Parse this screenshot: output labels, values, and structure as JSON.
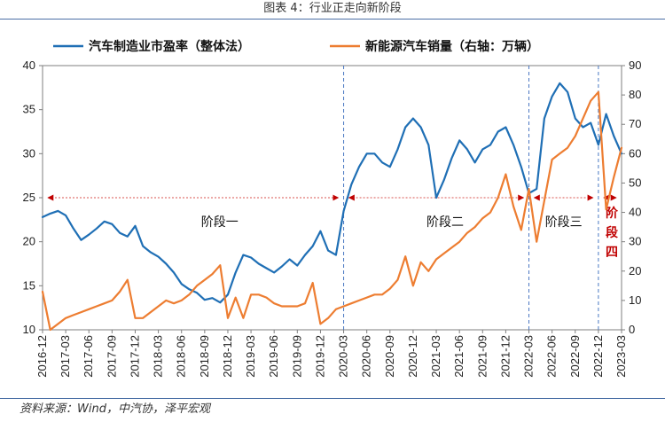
{
  "figure": {
    "title": "图表 4：行业正走向新阶段",
    "source": "资料来源：Wind，中汽协，泽平宏观"
  },
  "chart_data": {
    "type": "line",
    "x": [
      "2016-12",
      "2017-01",
      "2017-02",
      "2017-03",
      "2017-04",
      "2017-05",
      "2017-06",
      "2017-07",
      "2017-08",
      "2017-09",
      "2017-10",
      "2017-11",
      "2017-12",
      "2018-01",
      "2018-02",
      "2018-03",
      "2018-04",
      "2018-05",
      "2018-06",
      "2018-07",
      "2018-08",
      "2018-09",
      "2018-10",
      "2018-11",
      "2018-12",
      "2019-01",
      "2019-02",
      "2019-03",
      "2019-04",
      "2019-05",
      "2019-06",
      "2019-07",
      "2019-08",
      "2019-09",
      "2019-10",
      "2019-11",
      "2019-12",
      "2020-01",
      "2020-02",
      "2020-03",
      "2020-04",
      "2020-05",
      "2020-06",
      "2020-07",
      "2020-08",
      "2020-09",
      "2020-10",
      "2020-11",
      "2020-12",
      "2021-01",
      "2021-02",
      "2021-03",
      "2021-04",
      "2021-05",
      "2021-06",
      "2021-07",
      "2021-08",
      "2021-09",
      "2021-10",
      "2021-11",
      "2021-12",
      "2022-01",
      "2022-02",
      "2022-03",
      "2022-04",
      "2022-05",
      "2022-06",
      "2022-07",
      "2022-08",
      "2022-09",
      "2022-10",
      "2022-11",
      "2022-12",
      "2023-01",
      "2023-02",
      "2023-03"
    ],
    "x_ticks": [
      "2016-12",
      "2017-03",
      "2017-06",
      "2017-09",
      "2017-12",
      "2018-03",
      "2018-06",
      "2018-09",
      "2018-12",
      "2019-03",
      "2019-06",
      "2019-09",
      "2019-12",
      "2020-03",
      "2020-06",
      "2020-09",
      "2020-12",
      "2021-03",
      "2021-06",
      "2021-09",
      "2021-12",
      "2022-03",
      "2022-06",
      "2022-09",
      "2022-12",
      "2023-03"
    ],
    "series": [
      {
        "name": "汽车制造业市盈率（整体法）",
        "axis": "left",
        "color": "#1f6fb5",
        "values": [
          22.8,
          23.2,
          23.5,
          23.0,
          21.5,
          20.2,
          20.8,
          21.5,
          22.3,
          22.0,
          21.0,
          20.6,
          21.8,
          19.5,
          18.8,
          18.3,
          17.5,
          16.5,
          15.2,
          14.6,
          14.2,
          13.4,
          13.6,
          13.1,
          14.0,
          16.5,
          18.5,
          18.2,
          17.5,
          17.0,
          16.5,
          17.2,
          18.0,
          17.3,
          18.5,
          19.5,
          21.2,
          19.0,
          18.5,
          23.5,
          26.5,
          28.5,
          30.0,
          30.0,
          29.0,
          28.5,
          30.5,
          33.0,
          34.0,
          33.0,
          31.0,
          25.0,
          27.0,
          29.5,
          31.5,
          30.5,
          29.0,
          30.5,
          31.0,
          32.5,
          33.0,
          31.0,
          28.5,
          25.5,
          26.0,
          34.0,
          36.5,
          38.0,
          37.0,
          34.0,
          33.0,
          33.5,
          31.0,
          34.5,
          32.0,
          30.0
        ]
      },
      {
        "name": "新能源汽车销量（右轴：万辆）",
        "axis": "right",
        "color": "#ed7d31",
        "values": [
          13,
          0,
          2,
          4,
          5,
          6,
          7,
          8,
          9,
          10,
          13,
          17,
          4,
          4,
          6,
          8,
          10,
          9,
          10,
          12,
          15,
          17,
          19,
          22,
          4,
          11,
          4,
          12,
          12,
          11,
          9,
          8,
          8,
          8,
          9,
          16,
          2,
          4,
          7,
          8,
          9,
          10,
          11,
          12,
          12,
          14,
          17,
          25,
          15,
          23,
          20,
          24,
          26,
          28,
          30,
          33,
          35,
          38,
          40,
          45,
          53,
          42,
          34,
          48,
          30,
          44,
          58,
          60,
          62,
          66,
          72,
          78,
          81,
          41,
          52,
          62
        ]
      }
    ],
    "y_left": {
      "min": 10,
      "max": 40,
      "ticks": [
        10,
        15,
        20,
        25,
        30,
        35,
        40
      ]
    },
    "y_right": {
      "min": 0,
      "max": 90,
      "ticks": [
        0,
        10,
        20,
        30,
        40,
        50,
        60,
        70,
        80,
        90
      ]
    },
    "dividers": [
      "2020-03",
      "2022-03",
      "2022-12"
    ],
    "stages": [
      {
        "label": "阶段一",
        "from": "2016-12",
        "to": "2020-03"
      },
      {
        "label": "阶段二",
        "from": "2020-03",
        "to": "2022-03"
      },
      {
        "label": "阶段三",
        "from": "2022-03",
        "to": "2022-12"
      },
      {
        "label": "阶段四",
        "from": "2022-12",
        "to": "2023-03"
      }
    ],
    "stage_arrow_level": 25,
    "legend_position": "top",
    "grid": false
  }
}
